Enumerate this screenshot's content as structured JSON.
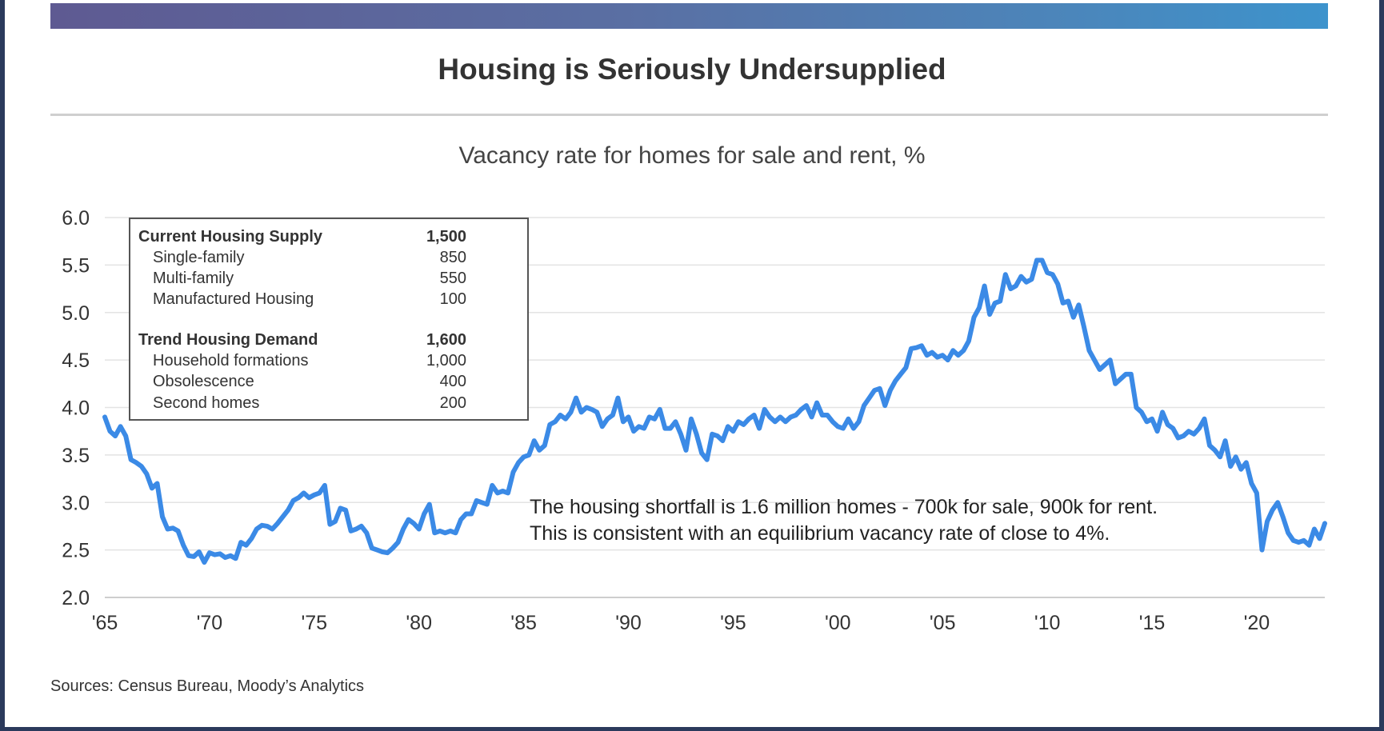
{
  "header": {
    "title": "Housing is Seriously Undersupplied"
  },
  "chart_data": {
    "type": "line",
    "title": "Housing is Seriously Undersupplied",
    "subtitle": "Vacancy rate for homes for sale and rent, %",
    "ylim": [
      2.0,
      6.0
    ],
    "xlim": [
      1965,
      2023.25
    ],
    "y_ticks": [
      "6.0",
      "5.5",
      "5.0",
      "4.5",
      "4.0",
      "3.5",
      "3.0",
      "2.5",
      "2.0"
    ],
    "x_ticks": [
      {
        "value": 1965,
        "label": "'65"
      },
      {
        "value": 1970,
        "label": "'70"
      },
      {
        "value": 1975,
        "label": "'75"
      },
      {
        "value": 1980,
        "label": "'80"
      },
      {
        "value": 1985,
        "label": "'85"
      },
      {
        "value": 1990,
        "label": "'90"
      },
      {
        "value": 1995,
        "label": "'95"
      },
      {
        "value": 2000,
        "label": "'00"
      },
      {
        "value": 2005,
        "label": "'05"
      },
      {
        "value": 2010,
        "label": "'10"
      },
      {
        "value": 2015,
        "label": "'15"
      },
      {
        "value": 2020,
        "label": "'20"
      }
    ],
    "grid": true,
    "series": [
      {
        "color": "#3b8ae6",
        "x": [
          1965,
          1965.25,
          1965.5,
          1965.75,
          1966,
          1966.25,
          1966.5,
          1966.75,
          1967,
          1967.25,
          1967.5,
          1967.75,
          1968,
          1968.25,
          1968.5,
          1968.75,
          1969,
          1969.25,
          1969.5,
          1969.75,
          1970,
          1970.25,
          1970.5,
          1970.75,
          1971,
          1971.25,
          1971.5,
          1971.75,
          1972,
          1972.25,
          1972.5,
          1972.75,
          1973,
          1973.25,
          1973.5,
          1973.75,
          1974,
          1974.25,
          1974.5,
          1974.75,
          1975,
          1975.25,
          1975.5,
          1975.75,
          1976,
          1976.25,
          1976.5,
          1976.75,
          1977,
          1977.25,
          1977.5,
          1977.75,
          1978,
          1978.25,
          1978.5,
          1978.75,
          1979,
          1979.25,
          1979.5,
          1979.75,
          1980,
          1980.25,
          1980.5,
          1980.75,
          1981,
          1981.25,
          1981.5,
          1981.75,
          1982,
          1982.25,
          1982.5,
          1982.75,
          1983,
          1983.25,
          1983.5,
          1983.75,
          1984,
          1984.25,
          1984.5,
          1984.75,
          1985,
          1985.25,
          1985.5,
          1985.75,
          1986,
          1986.25,
          1986.5,
          1986.75,
          1987,
          1987.25,
          1987.5,
          1987.75,
          1988,
          1988.25,
          1988.5,
          1988.75,
          1989,
          1989.25,
          1989.5,
          1989.75,
          1990,
          1990.25,
          1990.5,
          1990.75,
          1991,
          1991.25,
          1991.5,
          1991.75,
          1992,
          1992.25,
          1992.5,
          1992.75,
          1993,
          1993.25,
          1993.5,
          1993.75,
          1994,
          1994.25,
          1994.5,
          1994.75,
          1995,
          1995.25,
          1995.5,
          1995.75,
          1996,
          1996.25,
          1996.5,
          1996.75,
          1997,
          1997.25,
          1997.5,
          1997.75,
          1998,
          1998.25,
          1998.5,
          1998.75,
          1999,
          1999.25,
          1999.5,
          1999.75,
          2000,
          2000.25,
          2000.5,
          2000.75,
          2001,
          2001.25,
          2001.5,
          2001.75,
          2002,
          2002.25,
          2002.5,
          2002.75,
          2003,
          2003.25,
          2003.5,
          2003.75,
          2004,
          2004.25,
          2004.5,
          2004.75,
          2005,
          2005.25,
          2005.5,
          2005.75,
          2006,
          2006.25,
          2006.5,
          2006.75,
          2007,
          2007.25,
          2007.5,
          2007.75,
          2008,
          2008.25,
          2008.5,
          2008.75,
          2009,
          2009.25,
          2009.5,
          2009.75,
          2010,
          2010.25,
          2010.5,
          2010.75,
          2011,
          2011.25,
          2011.5,
          2011.75,
          2012,
          2012.25,
          2012.5,
          2012.75,
          2013,
          2013.25,
          2013.5,
          2013.75,
          2014,
          2014.25,
          2014.5,
          2014.75,
          2015,
          2015.25,
          2015.5,
          2015.75,
          2016,
          2016.25,
          2016.5,
          2016.75,
          2017,
          2017.25,
          2017.5,
          2017.75,
          2018,
          2018.25,
          2018.5,
          2018.75,
          2019,
          2019.25,
          2019.5,
          2019.75,
          2020,
          2020.25,
          2020.5,
          2020.75,
          2021,
          2021.25,
          2021.5,
          2021.75,
          2022,
          2022.25,
          2022.5,
          2022.75,
          2023,
          2023.25
        ],
        "values": [
          3.9,
          3.75,
          3.7,
          3.8,
          3.7,
          3.45,
          3.42,
          3.38,
          3.3,
          3.15,
          3.2,
          2.85,
          2.72,
          2.73,
          2.7,
          2.55,
          2.44,
          2.43,
          2.48,
          2.37,
          2.47,
          2.45,
          2.46,
          2.42,
          2.44,
          2.41,
          2.58,
          2.55,
          2.62,
          2.72,
          2.76,
          2.75,
          2.72,
          2.78,
          2.85,
          2.92,
          3.02,
          3.05,
          3.1,
          3.05,
          3.08,
          3.1,
          3.18,
          2.77,
          2.8,
          2.94,
          2.92,
          2.7,
          2.72,
          2.75,
          2.68,
          2.52,
          2.5,
          2.48,
          2.47,
          2.52,
          2.58,
          2.72,
          2.82,
          2.78,
          2.72,
          2.88,
          2.98,
          2.68,
          2.7,
          2.68,
          2.7,
          2.68,
          2.82,
          2.88,
          2.88,
          3.02,
          3.0,
          2.98,
          3.18,
          3.1,
          3.12,
          3.1,
          3.32,
          3.42,
          3.48,
          3.5,
          3.65,
          3.55,
          3.6,
          3.82,
          3.85,
          3.92,
          3.88,
          3.95,
          4.1,
          3.95,
          4.0,
          3.98,
          3.95,
          3.8,
          3.88,
          3.92,
          4.1,
          3.85,
          3.9,
          3.75,
          3.8,
          3.78,
          3.9,
          3.88,
          3.98,
          3.78,
          3.78,
          3.85,
          3.72,
          3.55,
          3.88,
          3.72,
          3.52,
          3.45,
          3.72,
          3.7,
          3.65,
          3.8,
          3.75,
          3.85,
          3.82,
          3.88,
          3.92,
          3.78,
          3.98,
          3.9,
          3.85,
          3.9,
          3.85,
          3.9,
          3.92,
          3.98,
          4.02,
          3.9,
          4.05,
          3.92,
          3.92,
          3.85,
          3.8,
          3.78,
          3.88,
          3.78,
          3.85,
          4.02,
          4.1,
          4.18,
          4.2,
          4.02,
          4.18,
          4.28,
          4.35,
          4.42,
          4.62,
          4.63,
          4.65,
          4.55,
          4.58,
          4.53,
          4.55,
          4.5,
          4.6,
          4.55,
          4.6,
          4.7,
          4.95,
          5.05,
          5.28,
          4.98,
          5.1,
          5.12,
          5.4,
          5.25,
          5.28,
          5.38,
          5.32,
          5.35,
          5.55,
          5.55,
          5.42,
          5.4,
          5.3,
          5.1,
          5.12,
          4.95,
          5.08,
          4.85,
          4.6,
          4.5,
          4.4,
          4.45,
          4.5,
          4.25,
          4.3,
          4.35,
          4.35,
          4.0,
          3.95,
          3.85,
          3.88,
          3.75,
          3.95,
          3.82,
          3.78,
          3.68,
          3.7,
          3.75,
          3.72,
          3.78,
          3.88,
          3.6,
          3.55,
          3.48,
          3.65,
          3.38,
          3.48,
          3.35,
          3.42,
          3.2,
          3.1,
          2.5,
          2.8,
          2.92,
          3.0,
          2.85,
          2.68,
          2.6,
          2.58,
          2.6,
          2.55,
          2.72,
          2.62,
          2.78
        ]
      }
    ],
    "annotation": {
      "lines": [
        "The housing shortfall is 1.6 million homes - 700k for sale, 900k for rent.",
        "This is consistent with an equilibrium vacancy rate of close to 4%."
      ]
    }
  },
  "supply_table": {
    "rows": [
      {
        "label": "Current Housing Supply",
        "value": "1,500",
        "kind": "header"
      },
      {
        "label": "Single-family",
        "value": "850",
        "kind": "sub"
      },
      {
        "label": "Multi-family",
        "value": "550",
        "kind": "sub"
      },
      {
        "label": "Manufactured Housing",
        "value": "100",
        "kind": "sub"
      },
      {
        "label": "Trend Housing Demand",
        "value": "1,600",
        "kind": "header"
      },
      {
        "label": "Household formations",
        "value": "1,000",
        "kind": "sub"
      },
      {
        "label": "Obsolescence",
        "value": "400",
        "kind": "sub"
      },
      {
        "label": "Second homes",
        "value": "200",
        "kind": "sub"
      }
    ]
  },
  "footer": {
    "source": "Sources: Census Bureau, Moody’s Analytics"
  }
}
